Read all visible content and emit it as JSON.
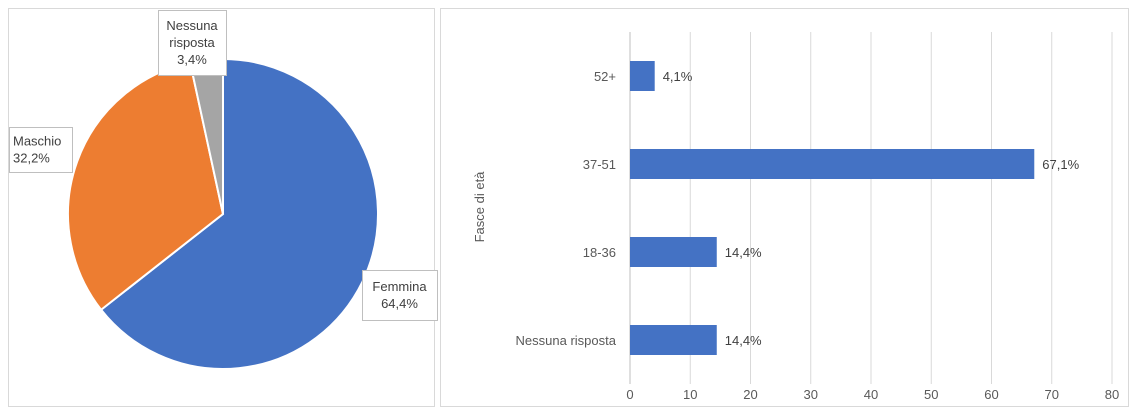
{
  "chart_data": [
    {
      "type": "pie",
      "title": "",
      "categories": [
        "Femmina",
        "Maschio",
        "Nessuna risposta"
      ],
      "values": [
        64.4,
        32.2,
        3.4
      ],
      "data_labels": [
        {
          "lines": [
            "Femmina",
            "64,4%"
          ]
        },
        {
          "lines": [
            "Maschio",
            "32,2%"
          ]
        },
        {
          "lines": [
            "Nessuna",
            "risposta",
            "3,4%"
          ]
        }
      ],
      "colors": [
        "#4472C4",
        "#ED7D31",
        "#A5A5A5"
      ],
      "legend": "none"
    },
    {
      "type": "bar",
      "orientation": "horizontal",
      "categories": [
        "52+",
        "37-51",
        "18-36",
        "Nessuna risposta"
      ],
      "values": [
        4.1,
        67.1,
        14.4,
        14.4
      ],
      "value_labels": [
        "4,1%",
        "67,1%",
        "14,4%",
        "14,4%"
      ],
      "ylabel": "Fasce di età",
      "xlabel": "",
      "xlim": [
        0,
        80
      ],
      "xticks": [
        0,
        10,
        20,
        30,
        40,
        50,
        60,
        70,
        80
      ],
      "grid": true,
      "color": "#4472C4",
      "legend": "none"
    }
  ]
}
